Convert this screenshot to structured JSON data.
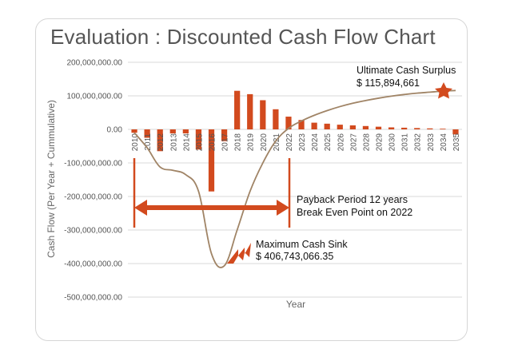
{
  "slide": {
    "title": "Evaluation : Discounted Cash Flow Chart"
  },
  "chart_data": {
    "type": "bar",
    "title": "",
    "xlabel": "Year",
    "ylabel": "Cash Flow (Per Year + Cummulative)",
    "ylim": [
      -500000000,
      200000000
    ],
    "yticks": [
      200000000,
      100000000,
      0,
      -100000000,
      -200000000,
      -300000000,
      -400000000,
      -500000000
    ],
    "ytick_labels": [
      "200,000,000.00",
      "100,000,000.00",
      "0.00",
      "-100,000,000.00",
      "-200,000,000.00",
      "-300,000,000.00",
      "-400,000,000.00",
      "-500,000,000.00"
    ],
    "categories": [
      "2010",
      "2011",
      "2012",
      "2013",
      "2014",
      "2015",
      "2016",
      "2017",
      "2018",
      "2019",
      "2020",
      "2021",
      "2022",
      "2023",
      "2024",
      "2025",
      "2026",
      "2027",
      "2028",
      "2029",
      "2030",
      "2031",
      "2032",
      "2033",
      "2034",
      "2035"
    ],
    "series": [
      {
        "type": "bar",
        "color": "#D24A1E",
        "values": [
          -10000000,
          -25000000,
          -65000000,
          -12000000,
          -12000000,
          -60000000,
          -185000000,
          -35000000,
          115000000,
          105000000,
          87000000,
          60000000,
          38000000,
          28000000,
          20000000,
          17000000,
          14000000,
          12000000,
          10000000,
          8000000,
          6000000,
          5000000,
          4000000,
          3000000,
          2000000,
          -15000000
        ]
      },
      {
        "type": "line",
        "color": "#A08466",
        "values": [
          -10000000,
          -55000000,
          -112000000,
          -122000000,
          -135000000,
          -185000000,
          -370000000,
          -406743066,
          -300000000,
          -185000000,
          -100000000,
          -35000000,
          3000000,
          25000000,
          42000000,
          56000000,
          68000000,
          78000000,
          86000000,
          93000000,
          99000000,
          104000000,
          108000000,
          111000000,
          114000000,
          115894661
        ]
      }
    ],
    "grid": true,
    "gridlines": "horizontal",
    "annotations": {
      "surplus": {
        "line1": "Ultimate Cash Surplus",
        "line2": "$ 115,894,661"
      },
      "payback": {
        "line1": "Payback Period 12 years",
        "line2": "Break Even Point on 2022"
      },
      "sink": {
        "line1": "Maximum Cash Sink",
        "line2": "$ 406,743,066.35"
      },
      "payback_span": [
        "2010",
        "2022"
      ],
      "arrow_color": "#D24A1E",
      "star_color": "#D24A1E"
    }
  }
}
